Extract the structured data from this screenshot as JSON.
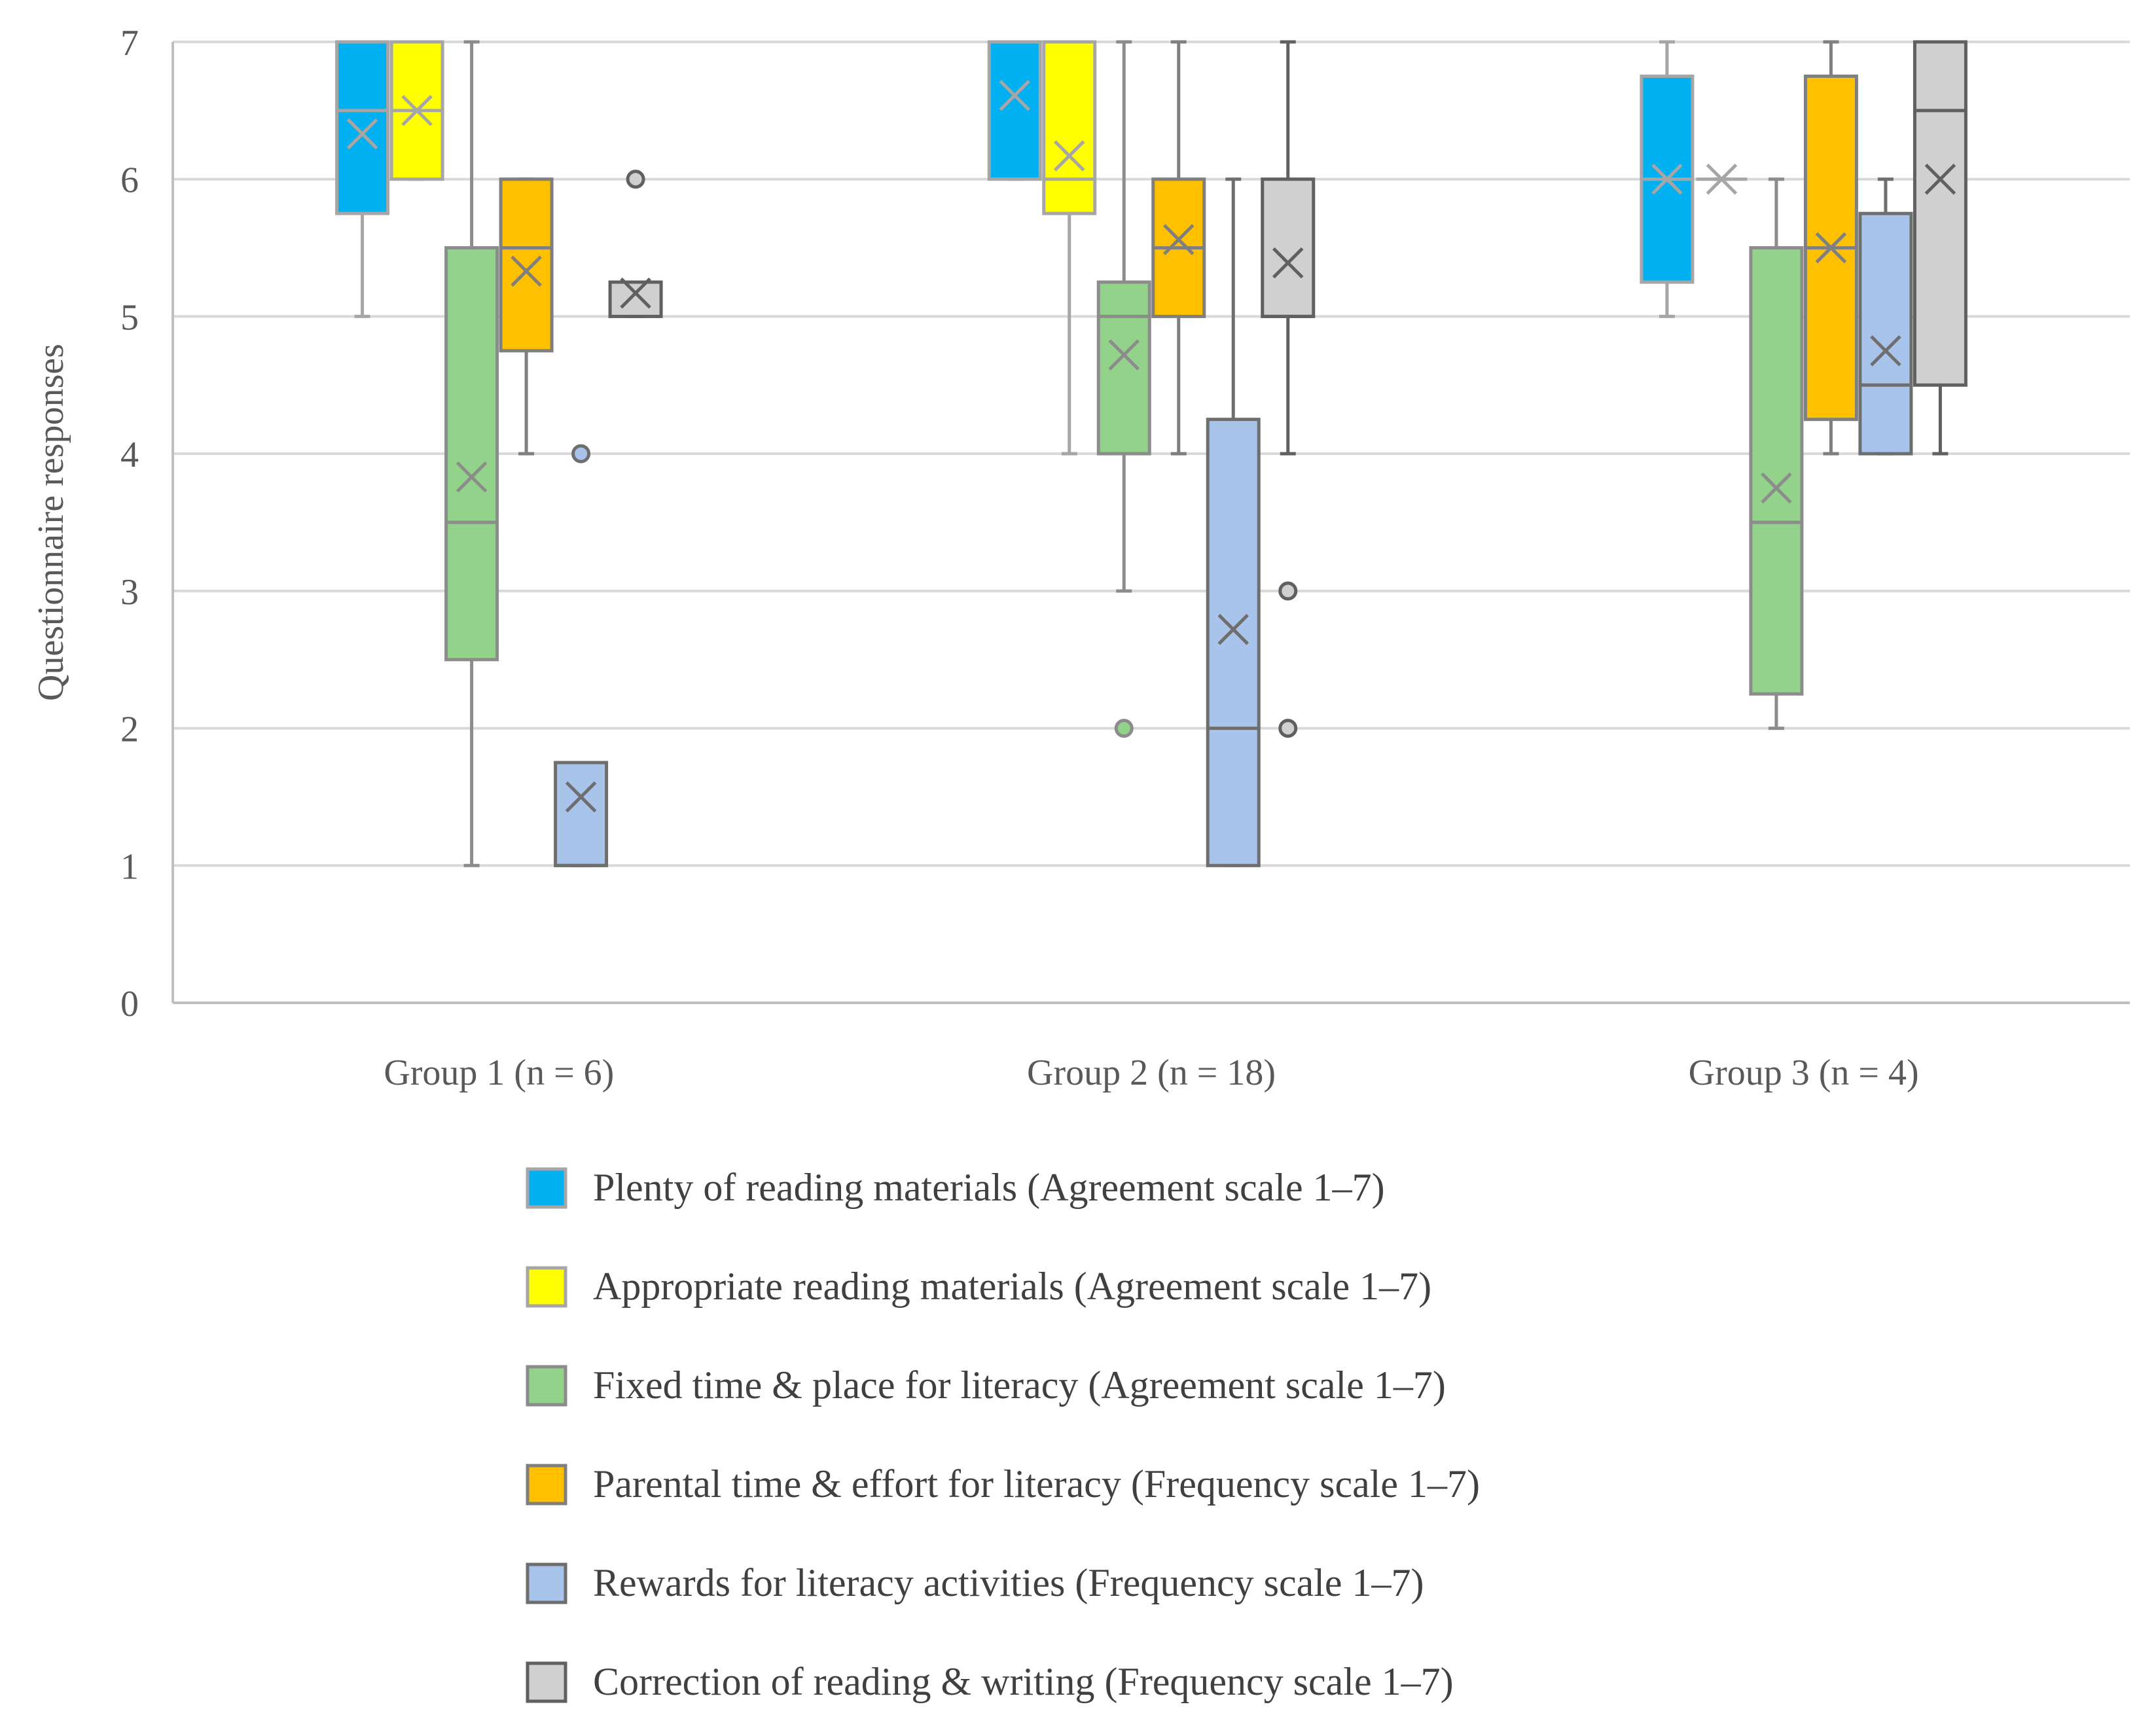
{
  "chart_data": {
    "type": "boxplot",
    "title": "",
    "xlabel": "",
    "ylabel": "Questionnaire responses",
    "ylim": [
      0,
      7
    ],
    "yticks": [
      0,
      1,
      2,
      3,
      4,
      5,
      6,
      7
    ],
    "grid": true,
    "legend_position": "bottom",
    "categories": [
      "Group 1 (n = 6)",
      "Group 2 (n = 18)",
      "Group 3 (n = 4)"
    ],
    "series": [
      {
        "name": "Plenty of reading materials (Agreement scale 1–7)",
        "color": "#00B0F0",
        "edge": "#A6A6A6",
        "boxes": [
          {
            "min": 5,
            "q1": 5.75,
            "median": 6.5,
            "q3": 7,
            "max": 7,
            "mean": 6.33,
            "outliers": []
          },
          {
            "min": 6,
            "q1": 6,
            "median": 7,
            "q3": 7,
            "max": 7,
            "mean": 6.61,
            "outliers": []
          },
          {
            "min": 5,
            "q1": 5.25,
            "median": 6,
            "q3": 6.75,
            "max": 7,
            "mean": 6.0,
            "outliers": []
          }
        ]
      },
      {
        "name": "Appropriate reading materials (Agreement scale 1–7)",
        "color": "#FFFF00",
        "edge": "#A6A6A6",
        "boxes": [
          {
            "min": 6,
            "q1": 6,
            "median": 6.5,
            "q3": 7,
            "max": 7,
            "mean": 6.5,
            "outliers": []
          },
          {
            "min": 4,
            "q1": 5.75,
            "median": 6,
            "q3": 7,
            "max": 7,
            "mean": 6.17,
            "outliers": []
          },
          {
            "min": 6,
            "q1": 6,
            "median": 6,
            "q3": 6,
            "max": 6,
            "mean": 6.0,
            "outliers": []
          }
        ]
      },
      {
        "name": "Fixed time & place for literacy (Agreement scale 1–7)",
        "color": "#92D28A",
        "edge": "#8C8C8C",
        "boxes": [
          {
            "min": 1,
            "q1": 2.5,
            "median": 3.5,
            "q3": 5.5,
            "max": 7,
            "mean": 3.83,
            "outliers": []
          },
          {
            "min": 3,
            "q1": 4,
            "median": 5,
            "q3": 5.25,
            "max": 7,
            "mean": 4.72,
            "outliers": [
              2
            ]
          },
          {
            "min": 2,
            "q1": 2.25,
            "median": 3.5,
            "q3": 5.5,
            "max": 6,
            "mean": 3.75,
            "outliers": []
          }
        ]
      },
      {
        "name": "Parental time & effort for literacy (Frequency scale 1–7)",
        "color": "#FFC000",
        "edge": "#7F7F7F",
        "boxes": [
          {
            "min": 4,
            "q1": 4.75,
            "median": 5.5,
            "q3": 6,
            "max": 6,
            "mean": 5.33,
            "outliers": []
          },
          {
            "min": 4,
            "q1": 5,
            "median": 5.5,
            "q3": 6,
            "max": 7,
            "mean": 5.56,
            "outliers": []
          },
          {
            "min": 4,
            "q1": 4.25,
            "median": 5.5,
            "q3": 6.75,
            "max": 7,
            "mean": 5.5,
            "outliers": []
          }
        ]
      },
      {
        "name": "Rewards for literacy activities (Frequency scale 1–7)",
        "color": "#A9C4EA",
        "edge": "#6E6E6E",
        "boxes": [
          {
            "min": 1,
            "q1": 1,
            "median": 1,
            "q3": 1.75,
            "max": 1.75,
            "mean": 1.5,
            "outliers": [
              4
            ]
          },
          {
            "min": 1,
            "q1": 1,
            "median": 2,
            "q3": 4.25,
            "max": 6,
            "mean": 2.72,
            "outliers": []
          },
          {
            "min": 4,
            "q1": 4,
            "median": 4.5,
            "q3": 5.75,
            "max": 6,
            "mean": 4.75,
            "outliers": []
          }
        ]
      },
      {
        "name": "Correction of reading & writing (Frequency scale 1–7)",
        "color": "#D0D0D0",
        "edge": "#606060",
        "boxes": [
          {
            "min": 5,
            "q1": 5,
            "median": 5.25,
            "q3": 5.25,
            "max": 5.25,
            "mean": 5.17,
            "outliers": [
              6
            ]
          },
          {
            "min": 4,
            "q1": 5,
            "median": 5,
            "q3": 6,
            "max": 7,
            "mean": 5.39,
            "outliers": [
              3,
              2
            ]
          },
          {
            "min": 4,
            "q1": 4.5,
            "median": 6.5,
            "q3": 7,
            "max": 7,
            "mean": 6.0,
            "outliers": []
          }
        ]
      }
    ]
  }
}
